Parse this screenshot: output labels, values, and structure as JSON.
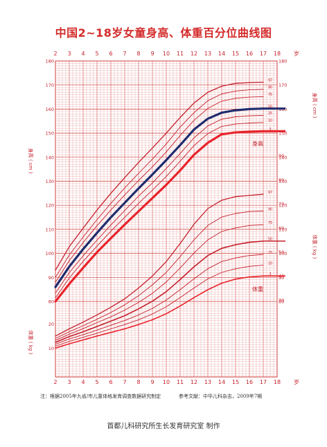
{
  "title": "中国2~18岁女童身高、体重百分位曲线图",
  "note_source": "注：根据2005年九省/市儿童体格发育调查数据研究制定",
  "note_ref": "参考文献：中华儿科杂志，2009年7期",
  "credit": "首都儿科研究所生长发育研究室 制作",
  "chart_data": {
    "type": "line",
    "x_label_unit": "岁",
    "x_ticks": [
      2,
      3,
      4,
      5,
      6,
      7,
      8,
      9,
      10,
      11,
      12,
      13,
      14,
      15,
      16,
      17,
      18
    ],
    "xlim": [
      2,
      18
    ],
    "grid": true,
    "height": {
      "label": "身高 ( cm )",
      "curve_label": "身高",
      "ticks": [
        80,
        90,
        100,
        110,
        120,
        130,
        140,
        150,
        160,
        170,
        180
      ],
      "ylim": [
        80,
        180
      ],
      "x": [
        2,
        3,
        4,
        5,
        6,
        7,
        8,
        9,
        10,
        11,
        12,
        13,
        14,
        15,
        16,
        17
      ],
      "series": [
        {
          "name": "97",
          "values": [
            93.0,
            102.8,
            110.5,
            118.0,
            125.0,
            131.5,
            137.8,
            143.8,
            150.0,
            156.5,
            162.5,
            167.0,
            169.5,
            170.7,
            171.0,
            171.2
          ]
        },
        {
          "name": "90",
          "values": [
            90.0,
            99.3,
            106.8,
            114.0,
            120.8,
            127.2,
            133.3,
            139.2,
            145.5,
            152.5,
            158.5,
            163.5,
            166.3,
            167.5,
            168.0,
            168.2
          ]
        },
        {
          "name": "75",
          "values": [
            88.0,
            97.0,
            104.5,
            111.5,
            118.0,
            124.3,
            130.3,
            136.0,
            142.2,
            149.0,
            155.3,
            160.3,
            163.3,
            164.5,
            165.0,
            165.2
          ]
        },
        {
          "name": "50",
          "values": [
            86.0,
            94.5,
            101.8,
            108.5,
            115.0,
            121.0,
            127.0,
            132.8,
            138.8,
            145.0,
            151.5,
            156.0,
            158.5,
            159.5,
            160.0,
            160.2
          ]
        },
        {
          "name": "25",
          "values": [
            83.5,
            92.0,
            99.0,
            105.5,
            111.8,
            117.8,
            123.8,
            129.3,
            135.3,
            141.5,
            148.0,
            153.0,
            155.8,
            156.8,
            157.2,
            157.4
          ]
        },
        {
          "name": "10",
          "values": [
            81.5,
            89.8,
            96.7,
            103.0,
            109.2,
            115.0,
            120.8,
            126.3,
            132.0,
            138.3,
            144.8,
            149.8,
            152.8,
            153.8,
            154.2,
            154.4
          ]
        },
        {
          "name": "3",
          "values": [
            80.0,
            87.3,
            94.0,
            100.5,
            106.3,
            112.0,
            117.5,
            123.0,
            128.5,
            134.5,
            141.0,
            146.0,
            149.5,
            150.3,
            150.6,
            150.8
          ]
        }
      ]
    },
    "weight": {
      "label": "体重 ( kg )",
      "curve_label": "体重",
      "ticks": [
        10,
        20,
        30,
        40,
        50,
        60,
        70,
        80,
        90
      ],
      "ylim": [
        0,
        90
      ],
      "x": [
        2,
        3,
        4,
        5,
        6,
        7,
        8,
        9,
        10,
        11,
        12,
        13,
        14,
        15,
        16,
        17
      ],
      "series": [
        {
          "name": "97",
          "values": [
            15.0,
            18.0,
            20.8,
            23.8,
            27.0,
            30.5,
            35.0,
            40.0,
            46.0,
            53.5,
            61.5,
            68.0,
            71.5,
            73.0,
            73.5,
            74.0
          ]
        },
        {
          "name": "90",
          "values": [
            14.0,
            16.8,
            19.3,
            22.0,
            24.8,
            28.0,
            31.8,
            36.3,
            41.5,
            48.0,
            55.0,
            61.0,
            64.5,
            66.0,
            66.8,
            67.0
          ]
        },
        {
          "name": "75",
          "values": [
            13.2,
            15.8,
            18.1,
            20.6,
            23.0,
            25.8,
            29.0,
            32.8,
            37.5,
            43.3,
            49.5,
            55.0,
            58.5,
            60.0,
            61.0,
            61.3
          ]
        },
        {
          "name": "50",
          "values": [
            12.4,
            14.8,
            16.8,
            19.0,
            21.2,
            23.5,
            26.3,
            29.5,
            33.5,
            38.5,
            43.8,
            48.5,
            51.5,
            53.0,
            54.0,
            54.5
          ]
        },
        {
          "name": "25",
          "values": [
            11.6,
            13.8,
            15.6,
            17.5,
            19.5,
            21.5,
            23.8,
            26.5,
            30.0,
            34.3,
            38.8,
            43.0,
            46.0,
            47.5,
            48.5,
            49.0
          ]
        },
        {
          "name": "10",
          "values": [
            10.8,
            12.8,
            14.5,
            16.2,
            18.0,
            19.8,
            21.8,
            24.2,
            27.2,
            31.0,
            35.0,
            38.8,
            41.5,
            43.0,
            44.0,
            44.5
          ]
        },
        {
          "name": "3",
          "values": [
            10.0,
            11.8,
            13.4,
            15.0,
            16.5,
            18.0,
            19.8,
            21.8,
            24.3,
            27.5,
            31.0,
            34.3,
            37.0,
            38.7,
            39.6,
            40.0
          ]
        }
      ]
    },
    "colors": {
      "grid": "#d04040",
      "curve": "#c41e2a",
      "median_height": "#1f2c6e",
      "p3": "#e8232a"
    }
  }
}
